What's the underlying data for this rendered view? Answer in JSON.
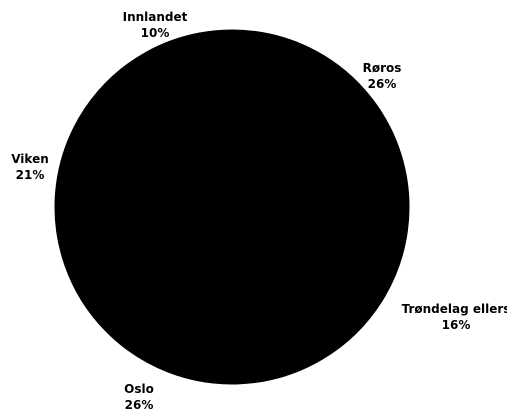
{
  "chart_data": {
    "type": "pie",
    "title": "",
    "slices": [
      {
        "label": "Røros",
        "value": 26,
        "value_label": "26%"
      },
      {
        "label": "Trøndelag ellers",
        "value": 16,
        "value_label": "16%"
      },
      {
        "label": "Oslo",
        "value": 26,
        "value_label": "26%"
      },
      {
        "label": "Viken",
        "value": 21,
        "value_label": "21%"
      },
      {
        "label": "Innlandet",
        "value": 10,
        "value_label": "10%"
      }
    ],
    "slice_color": "#000000",
    "background_color": "#ffffff",
    "label_color": "#000000"
  }
}
